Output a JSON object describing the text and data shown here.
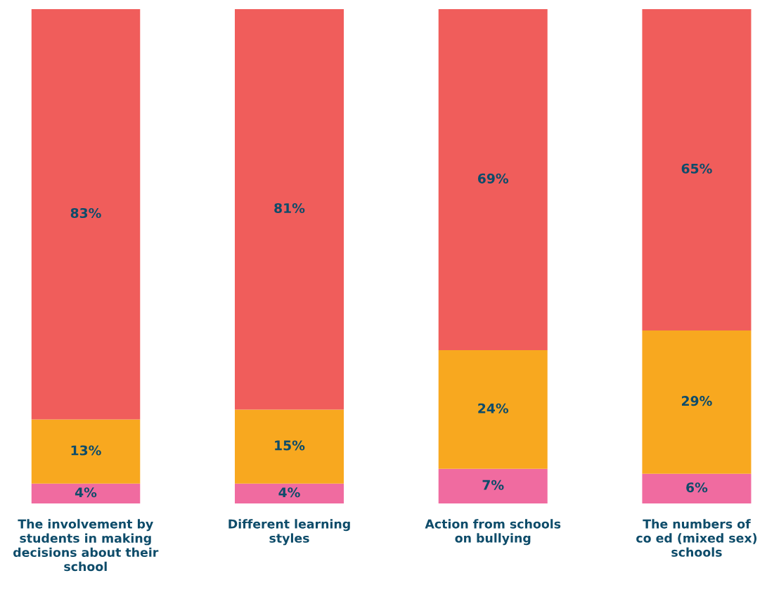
{
  "chart_data": {
    "type": "bar",
    "stacked": true,
    "categories": [
      "The involvement by\nstudents in making\ndecisions about their\nschool",
      "Different learning\nstyles",
      "Action from schools\non bullying",
      "The numbers of\nco ed (mixed sex)\nschools"
    ],
    "series": [
      {
        "color": "#f06ba0",
        "values": [
          4,
          4,
          7,
          6
        ],
        "value_labels": [
          "4%",
          "4%",
          "7%",
          "6%"
        ]
      },
      {
        "color": "#f8a81f",
        "values": [
          13,
          15,
          24,
          29
        ],
        "value_labels": [
          "13%",
          "15%",
          "24%",
          "29%"
        ]
      },
      {
        "color": "#f05d5b",
        "values": [
          83,
          81,
          69,
          65
        ],
        "value_labels": [
          "83%",
          "81%",
          "69%",
          "65%"
        ]
      }
    ],
    "ylim": [
      0,
      100
    ],
    "tick_labels": "x",
    "grid": false,
    "legend": false
  }
}
